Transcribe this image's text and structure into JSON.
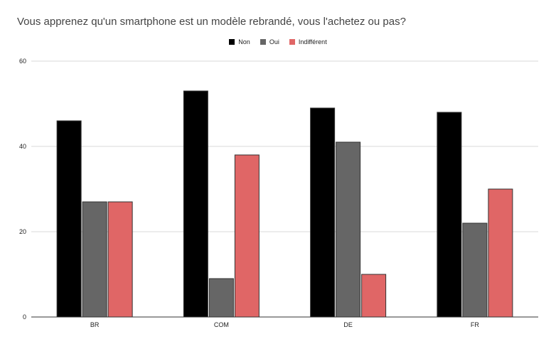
{
  "chart_data": {
    "type": "bar",
    "title": "Vous apprenez qu'un smartphone est un modèle rebrandé, vous l'achetez ou pas?",
    "categories": [
      "BR",
      "COM",
      "DE",
      "FR"
    ],
    "series": [
      {
        "name": "Non",
        "color": "#000000",
        "values": [
          46,
          53,
          49,
          48
        ]
      },
      {
        "name": "Oui",
        "color": "#666666",
        "values": [
          27,
          9,
          41,
          22
        ]
      },
      {
        "name": "Indifférent",
        "color": "#e06666",
        "values": [
          27,
          38,
          10,
          30
        ]
      }
    ],
    "ylim": [
      0,
      60
    ],
    "yticks": [
      0,
      20,
      40,
      60
    ],
    "grid": true,
    "legend_position": "top"
  }
}
